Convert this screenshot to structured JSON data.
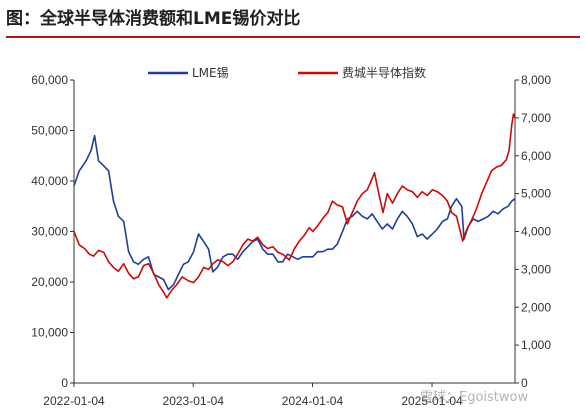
{
  "title": "图：全球半导体消费额和LME锡价对比",
  "watermark": "雪球：Egoistwow",
  "colors": {
    "lme": "#1f3f99",
    "index": "#cc0a0a",
    "axis": "#333333",
    "title_rule": "#b11217"
  },
  "chart_data": {
    "type": "line",
    "x_ticks": [
      "2022-01-04",
      "2023-01-04",
      "2024-01-04",
      "2025-01-04"
    ],
    "x_range": [
      "2022-01-04",
      "2025-09-15"
    ],
    "left_axis": {
      "ylim": [
        0,
        60000
      ],
      "ticks": [
        "0",
        "10,000",
        "20,000",
        "30,000",
        "40,000",
        "50,000",
        "60,000"
      ]
    },
    "right_axis": {
      "ylim": [
        0,
        8000
      ],
      "ticks": [
        "0",
        "1,000",
        "2,000",
        "3,000",
        "4,000",
        "5,000",
        "6,000",
        "7,000",
        "8,000"
      ]
    },
    "legend_position": "top",
    "series": [
      {
        "name": "LME锡",
        "axis": "left",
        "color": "#1f3f99",
        "points": [
          [
            "2022-01-04",
            39000
          ],
          [
            "2022-01-20",
            42000
          ],
          [
            "2022-02-10",
            44000
          ],
          [
            "2022-02-25",
            46000
          ],
          [
            "2022-03-08",
            49000
          ],
          [
            "2022-03-20",
            44000
          ],
          [
            "2022-04-05",
            43000
          ],
          [
            "2022-04-20",
            42000
          ],
          [
            "2022-05-05",
            36000
          ],
          [
            "2022-05-20",
            33000
          ],
          [
            "2022-06-05",
            32000
          ],
          [
            "2022-06-20",
            26000
          ],
          [
            "2022-07-05",
            24000
          ],
          [
            "2022-07-20",
            23500
          ],
          [
            "2022-08-05",
            24500
          ],
          [
            "2022-08-20",
            25000
          ],
          [
            "2022-09-05",
            21500
          ],
          [
            "2022-09-20",
            21000
          ],
          [
            "2022-10-05",
            20500
          ],
          [
            "2022-10-20",
            18500
          ],
          [
            "2022-11-05",
            19500
          ],
          [
            "2022-11-20",
            21500
          ],
          [
            "2022-12-05",
            23500
          ],
          [
            "2022-12-20",
            24000
          ],
          [
            "2023-01-05",
            26000
          ],
          [
            "2023-01-20",
            29500
          ],
          [
            "2023-02-05",
            28000
          ],
          [
            "2023-02-20",
            26500
          ],
          [
            "2023-03-05",
            22000
          ],
          [
            "2023-03-20",
            23000
          ],
          [
            "2023-04-05",
            25000
          ],
          [
            "2023-04-20",
            25500
          ],
          [
            "2023-05-05",
            25500
          ],
          [
            "2023-05-20",
            24500
          ],
          [
            "2023-06-05",
            26000
          ],
          [
            "2023-06-20",
            27000
          ],
          [
            "2023-07-05",
            28000
          ],
          [
            "2023-07-20",
            28500
          ],
          [
            "2023-08-05",
            26500
          ],
          [
            "2023-08-20",
            25500
          ],
          [
            "2023-09-05",
            25500
          ],
          [
            "2023-09-20",
            24000
          ],
          [
            "2023-10-05",
            24000
          ],
          [
            "2023-10-20",
            25500
          ],
          [
            "2023-11-05",
            25000
          ],
          [
            "2023-11-20",
            24500
          ],
          [
            "2023-12-05",
            25000
          ],
          [
            "2023-12-20",
            25000
          ],
          [
            "2024-01-05",
            25000
          ],
          [
            "2024-01-20",
            26000
          ],
          [
            "2024-02-05",
            26000
          ],
          [
            "2024-02-20",
            26500
          ],
          [
            "2024-03-05",
            26500
          ],
          [
            "2024-03-20",
            27500
          ],
          [
            "2024-04-05",
            30000
          ],
          [
            "2024-04-20",
            32500
          ],
          [
            "2024-05-05",
            33000
          ],
          [
            "2024-05-20",
            34000
          ],
          [
            "2024-06-05",
            33000
          ],
          [
            "2024-06-20",
            32500
          ],
          [
            "2024-07-05",
            33500
          ],
          [
            "2024-07-20",
            32000
          ],
          [
            "2024-08-05",
            30500
          ],
          [
            "2024-08-20",
            31500
          ],
          [
            "2024-09-05",
            30500
          ],
          [
            "2024-09-20",
            32500
          ],
          [
            "2024-10-05",
            34000
          ],
          [
            "2024-10-20",
            33000
          ],
          [
            "2024-11-05",
            31500
          ],
          [
            "2024-11-20",
            29000
          ],
          [
            "2024-12-05",
            29500
          ],
          [
            "2024-12-20",
            28500
          ],
          [
            "2025-01-05",
            29500
          ],
          [
            "2025-01-20",
            30500
          ],
          [
            "2025-02-05",
            32000
          ],
          [
            "2025-02-20",
            32500
          ],
          [
            "2025-03-05",
            35000
          ],
          [
            "2025-03-20",
            36500
          ],
          [
            "2025-04-05",
            35000
          ],
          [
            "2025-04-12",
            28500
          ],
          [
            "2025-04-25",
            31000
          ],
          [
            "2025-05-10",
            32500
          ],
          [
            "2025-05-25",
            32000
          ],
          [
            "2025-06-10",
            32500
          ],
          [
            "2025-06-25",
            33000
          ],
          [
            "2025-07-10",
            34000
          ],
          [
            "2025-07-25",
            33500
          ],
          [
            "2025-08-10",
            34500
          ],
          [
            "2025-08-25",
            35000
          ],
          [
            "2025-09-05",
            36000
          ],
          [
            "2025-09-15",
            36500
          ]
        ]
      },
      {
        "name": "费城半导体指数",
        "axis": "right",
        "color": "#cc0a0a",
        "points": [
          [
            "2022-01-04",
            4000
          ],
          [
            "2022-01-20",
            3650
          ],
          [
            "2022-02-05",
            3550
          ],
          [
            "2022-02-20",
            3400
          ],
          [
            "2022-03-05",
            3350
          ],
          [
            "2022-03-20",
            3500
          ],
          [
            "2022-04-05",
            3450
          ],
          [
            "2022-04-20",
            3200
          ],
          [
            "2022-05-05",
            3050
          ],
          [
            "2022-05-20",
            2950
          ],
          [
            "2022-06-05",
            3150
          ],
          [
            "2022-06-20",
            2900
          ],
          [
            "2022-07-05",
            2750
          ],
          [
            "2022-07-20",
            2800
          ],
          [
            "2022-08-05",
            3100
          ],
          [
            "2022-08-20",
            3150
          ],
          [
            "2022-09-05",
            2900
          ],
          [
            "2022-09-20",
            2600
          ],
          [
            "2022-10-05",
            2400
          ],
          [
            "2022-10-15",
            2250
          ],
          [
            "2022-10-30",
            2450
          ],
          [
            "2022-11-15",
            2600
          ],
          [
            "2022-12-01",
            2800
          ],
          [
            "2022-12-20",
            2700
          ],
          [
            "2023-01-05",
            2650
          ],
          [
            "2023-01-20",
            2800
          ],
          [
            "2023-02-05",
            3050
          ],
          [
            "2023-02-20",
            3000
          ],
          [
            "2023-03-05",
            3150
          ],
          [
            "2023-03-20",
            3250
          ],
          [
            "2023-04-05",
            3200
          ],
          [
            "2023-04-20",
            3100
          ],
          [
            "2023-05-05",
            3200
          ],
          [
            "2023-05-20",
            3400
          ],
          [
            "2023-06-05",
            3650
          ],
          [
            "2023-06-20",
            3800
          ],
          [
            "2023-07-05",
            3750
          ],
          [
            "2023-07-20",
            3850
          ],
          [
            "2023-08-05",
            3650
          ],
          [
            "2023-08-20",
            3550
          ],
          [
            "2023-09-05",
            3600
          ],
          [
            "2023-09-20",
            3450
          ],
          [
            "2023-10-05",
            3400
          ],
          [
            "2023-10-25",
            3250
          ],
          [
            "2023-11-10",
            3550
          ],
          [
            "2023-11-25",
            3750
          ],
          [
            "2023-12-10",
            3900
          ],
          [
            "2023-12-25",
            4100
          ],
          [
            "2024-01-05",
            4000
          ],
          [
            "2024-01-20",
            4150
          ],
          [
            "2024-02-05",
            4350
          ],
          [
            "2024-02-20",
            4500
          ],
          [
            "2024-03-05",
            4800
          ],
          [
            "2024-03-20",
            4700
          ],
          [
            "2024-04-05",
            4650
          ],
          [
            "2024-04-20",
            4200
          ],
          [
            "2024-05-05",
            4500
          ],
          [
            "2024-05-20",
            4800
          ],
          [
            "2024-06-05",
            5000
          ],
          [
            "2024-06-20",
            5100
          ],
          [
            "2024-07-05",
            5400
          ],
          [
            "2024-07-12",
            5550
          ],
          [
            "2024-07-25",
            5000
          ],
          [
            "2024-08-07",
            4500
          ],
          [
            "2024-08-20",
            5000
          ],
          [
            "2024-09-05",
            4750
          ],
          [
            "2024-09-20",
            5000
          ],
          [
            "2024-10-05",
            5200
          ],
          [
            "2024-10-20",
            5100
          ],
          [
            "2024-11-05",
            5050
          ],
          [
            "2024-11-20",
            4900
          ],
          [
            "2024-12-05",
            5050
          ],
          [
            "2024-12-20",
            4950
          ],
          [
            "2025-01-05",
            5100
          ],
          [
            "2025-01-20",
            5050
          ],
          [
            "2025-02-05",
            4950
          ],
          [
            "2025-02-20",
            4800
          ],
          [
            "2025-03-05",
            4500
          ],
          [
            "2025-03-20",
            4400
          ],
          [
            "2025-04-08",
            3750
          ],
          [
            "2025-04-20",
            4050
          ],
          [
            "2025-05-05",
            4300
          ],
          [
            "2025-05-20",
            4600
          ],
          [
            "2025-06-05",
            5000
          ],
          [
            "2025-06-20",
            5300
          ],
          [
            "2025-07-05",
            5600
          ],
          [
            "2025-07-20",
            5700
          ],
          [
            "2025-08-05",
            5750
          ],
          [
            "2025-08-20",
            5900
          ],
          [
            "2025-08-28",
            6150
          ],
          [
            "2025-09-05",
            6800
          ],
          [
            "2025-09-10",
            7100
          ],
          [
            "2025-09-15",
            7000
          ]
        ]
      }
    ]
  }
}
